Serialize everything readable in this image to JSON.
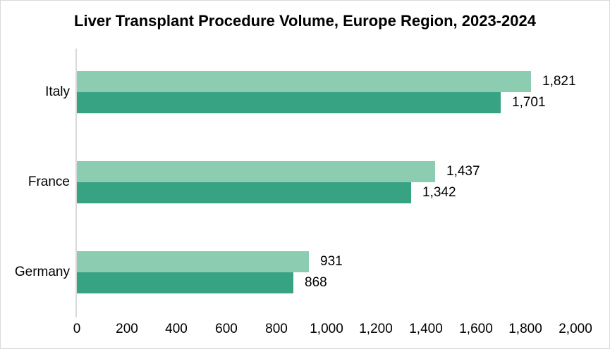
{
  "title": "Liver Transplant Procedure Volume, Europe Region, 2023-2024",
  "colors": {
    "series_light": "#8CCDB2",
    "series_dark": "#37A383",
    "axis_line": "#d9d9d9",
    "border": "#d9d9d9",
    "text": "#000000",
    "background": "#ffffff"
  },
  "chart_data": {
    "type": "bar",
    "orientation": "horizontal",
    "title": "Liver Transplant Procedure Volume, Europe Region, 2023-2024",
    "categories": [
      "Italy",
      "France",
      "Germany"
    ],
    "series": [
      {
        "name": "top-bar-light-green",
        "color": "#8CCDB2",
        "values": [
          1821,
          1437,
          931
        ],
        "labels": [
          "1,821",
          "1,437",
          "931"
        ]
      },
      {
        "name": "bottom-bar-dark-green",
        "color": "#37A383",
        "values": [
          1701,
          1342,
          868
        ],
        "labels": [
          "1,701",
          "1,342",
          "868"
        ]
      }
    ],
    "xlabel": "",
    "ylabel": "",
    "xlim": [
      0,
      2000
    ],
    "xticks": {
      "values": [
        0,
        200,
        400,
        600,
        800,
        1000,
        1200,
        1400,
        1600,
        1800,
        2000
      ],
      "labels": [
        "0",
        "200",
        "400",
        "600",
        "800",
        "1,000",
        "1,200",
        "1,400",
        "1,600",
        "1,800",
        "2,000"
      ]
    },
    "grid": false,
    "legend": null,
    "data_labels": true
  }
}
